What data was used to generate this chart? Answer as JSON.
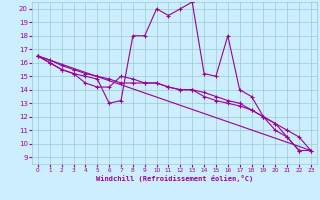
{
  "xlabel": "Windchill (Refroidissement éolien,°C)",
  "background_color": "#cceeff",
  "grid_color": "#99cccc",
  "line_color": "#990099",
  "xlim": [
    -0.5,
    23.5
  ],
  "ylim": [
    8.5,
    20.5
  ],
  "yticks": [
    9,
    10,
    11,
    12,
    13,
    14,
    15,
    16,
    17,
    18,
    19,
    20
  ],
  "xticks": [
    0,
    1,
    2,
    3,
    4,
    5,
    6,
    7,
    8,
    9,
    10,
    11,
    12,
    13,
    14,
    15,
    16,
    17,
    18,
    19,
    20,
    21,
    22,
    23
  ],
  "series": [
    {
      "x": [
        0,
        1,
        2,
        3,
        4,
        5,
        6,
        7,
        8,
        9,
        10,
        11,
        12,
        13,
        14,
        15,
        16,
        17,
        18,
        19,
        20,
        21,
        22
      ],
      "y": [
        16.5,
        16.0,
        15.5,
        15.2,
        15.0,
        14.8,
        13.0,
        13.2,
        18.0,
        18.0,
        20.0,
        19.5,
        20.0,
        20.5,
        15.2,
        15.0,
        18.0,
        14.0,
        13.5,
        12.0,
        11.0,
        10.5,
        9.5
      ]
    },
    {
      "x": [
        0,
        1,
        2,
        3,
        4,
        5,
        6,
        7,
        8,
        9,
        10,
        11,
        12,
        13,
        14,
        15,
        16,
        17,
        18,
        19,
        20,
        21,
        22,
        23
      ],
      "y": [
        16.5,
        16.2,
        15.8,
        15.5,
        15.2,
        15.0,
        14.8,
        14.5,
        14.5,
        14.5,
        14.5,
        14.2,
        14.0,
        14.0,
        13.8,
        13.5,
        13.2,
        13.0,
        12.5,
        12.0,
        11.5,
        11.0,
        10.5,
        9.5
      ]
    },
    {
      "x": [
        0,
        1,
        2,
        3,
        4,
        5,
        6,
        7,
        8,
        9,
        10,
        11,
        12,
        13,
        14,
        15,
        16,
        17,
        18,
        19,
        20,
        21,
        22,
        23
      ],
      "y": [
        16.5,
        16.0,
        15.5,
        15.2,
        14.5,
        14.2,
        14.2,
        15.0,
        14.8,
        14.5,
        14.5,
        14.2,
        14.0,
        14.0,
        13.5,
        13.2,
        13.0,
        12.8,
        12.5,
        12.0,
        11.5,
        10.5,
        9.5,
        9.5
      ]
    },
    {
      "x": [
        0,
        23
      ],
      "y": [
        16.5,
        9.5
      ]
    }
  ]
}
